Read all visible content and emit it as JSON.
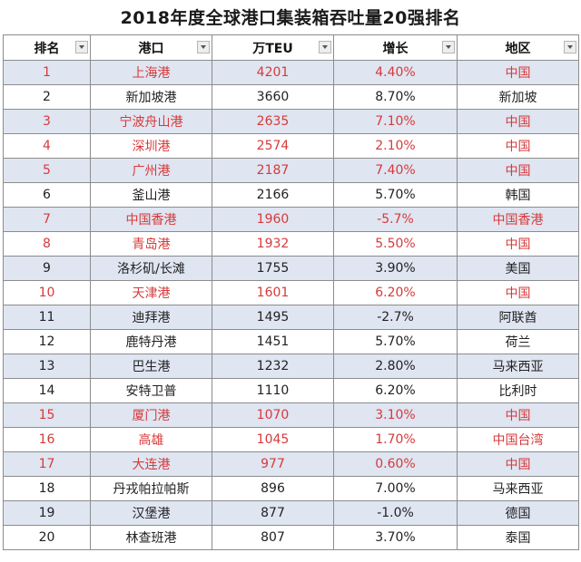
{
  "title": "2018年度全球港口集装箱吞吐量20强排名",
  "columns": [
    "排名",
    "港口",
    "万TEU",
    "增长",
    "地区"
  ],
  "accent_red": "#d73a3a",
  "alt_row_color": "#dfe5f1",
  "rows": [
    {
      "rank": "1",
      "port": "上海港",
      "teu": "4201",
      "growth": "4.40%",
      "region": "中国",
      "red": true,
      "shaded": true
    },
    {
      "rank": "2",
      "port": "新加坡港",
      "teu": "3660",
      "growth": "8.70%",
      "region": "新加坡",
      "red": false,
      "shaded": false
    },
    {
      "rank": "3",
      "port": "宁波舟山港",
      "teu": "2635",
      "growth": "7.10%",
      "region": "中国",
      "red": true,
      "shaded": true
    },
    {
      "rank": "4",
      "port": "深圳港",
      "teu": "2574",
      "growth": "2.10%",
      "region": "中国",
      "red": true,
      "shaded": false
    },
    {
      "rank": "5",
      "port": "广州港",
      "teu": "2187",
      "growth": "7.40%",
      "region": "中国",
      "red": true,
      "shaded": true
    },
    {
      "rank": "6",
      "port": "釜山港",
      "teu": "2166",
      "growth": "5.70%",
      "region": "韩国",
      "red": false,
      "shaded": false
    },
    {
      "rank": "7",
      "port": "中国香港",
      "teu": "1960",
      "growth": "-5.7%",
      "region": "中国香港",
      "red": true,
      "shaded": true
    },
    {
      "rank": "8",
      "port": "青岛港",
      "teu": "1932",
      "growth": "5.50%",
      "region": "中国",
      "red": true,
      "shaded": false
    },
    {
      "rank": "9",
      "port": "洛杉矶/长滩",
      "teu": "1755",
      "growth": "3.90%",
      "region": "美国",
      "red": false,
      "shaded": true
    },
    {
      "rank": "10",
      "port": "天津港",
      "teu": "1601",
      "growth": "6.20%",
      "region": "中国",
      "red": true,
      "shaded": false
    },
    {
      "rank": "11",
      "port": "迪拜港",
      "teu": "1495",
      "growth": "-2.7%",
      "region": "阿联酋",
      "red": false,
      "shaded": true
    },
    {
      "rank": "12",
      "port": "鹿特丹港",
      "teu": "1451",
      "growth": "5.70%",
      "region": "荷兰",
      "red": false,
      "shaded": false
    },
    {
      "rank": "13",
      "port": "巴生港",
      "teu": "1232",
      "growth": "2.80%",
      "region": "马来西亚",
      "red": false,
      "shaded": true
    },
    {
      "rank": "14",
      "port": "安特卫普",
      "teu": "1110",
      "growth": "6.20%",
      "region": "比利时",
      "red": false,
      "shaded": false
    },
    {
      "rank": "15",
      "port": "厦门港",
      "teu": "1070",
      "growth": "3.10%",
      "region": "中国",
      "red": true,
      "shaded": true
    },
    {
      "rank": "16",
      "port": "高雄",
      "teu": "1045",
      "growth": "1.70%",
      "region": "中国台湾",
      "red": true,
      "shaded": false
    },
    {
      "rank": "17",
      "port": "大连港",
      "teu": "977",
      "growth": "0.60%",
      "region": "中国",
      "red": true,
      "shaded": true
    },
    {
      "rank": "18",
      "port": "丹戎帕拉帕斯",
      "teu": "896",
      "growth": "7.00%",
      "region": "马来西亚",
      "red": false,
      "shaded": false
    },
    {
      "rank": "19",
      "port": "汉堡港",
      "teu": "877",
      "growth": "-1.0%",
      "region": "德国",
      "red": false,
      "shaded": true
    },
    {
      "rank": "20",
      "port": "林查班港",
      "teu": "807",
      "growth": "3.70%",
      "region": "泰国",
      "red": false,
      "shaded": false
    }
  ]
}
